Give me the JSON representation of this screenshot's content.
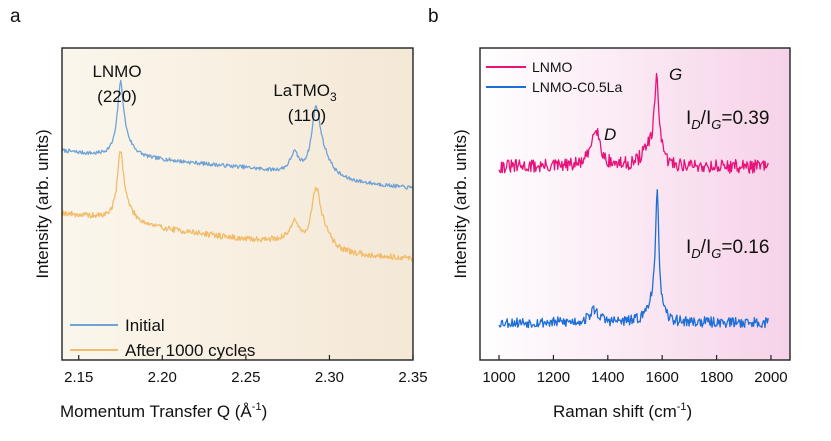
{
  "figure": {
    "panel_a_label": "a",
    "panel_b_label": "b"
  },
  "colors": {
    "initial": "#6fa3d8",
    "after": "#f2bc6a",
    "lnmo": "#e8137a",
    "lnmo_c": "#1d6fd6",
    "panel_a_bg_left": "#fbf6ec",
    "panel_a_bg_right": "#f4e8d6",
    "panel_b_bg_left": "#ffffff",
    "panel_b_bg_right": "#f6d2e8"
  },
  "chart_data": [
    {
      "type": "line",
      "title": "",
      "xlabel_prefix": "Momentum Transfer Q (Å",
      "xlabel_sup": "-1",
      "xlabel_suffix": ")",
      "ylabel": "Intensity (arb. units)",
      "xlim": [
        2.14,
        2.35
      ],
      "ylim": [
        0,
        1
      ],
      "xticks": [
        "2.15",
        "2.20",
        "2.25",
        "2.30",
        "2.35"
      ],
      "xtick_values": [
        2.15,
        2.2,
        2.25,
        2.3,
        2.35
      ],
      "legend_position": "bottom-left",
      "annotations": {
        "lnmo_name": "LNMO",
        "lnmo_hkl": "(220)",
        "la_name_main": "LaTMO",
        "la_name_sub": "3",
        "la_hkl": "(110)"
      },
      "series": [
        {
          "name": "Initial",
          "baseline_x": [
            2.14,
            2.16,
            2.17,
            2.2,
            2.25,
            2.27,
            2.3,
            2.35
          ],
          "baseline_y": [
            0.67,
            0.655,
            0.65,
            0.64,
            0.615,
            0.6,
            0.575,
            0.55
          ],
          "peaks": [
            {
              "center": 2.175,
              "height": 0.21,
              "width": 0.0022
            },
            {
              "center": 2.178,
              "height": 0.04,
              "width": 0.006
            },
            {
              "center": 2.279,
              "height": 0.06,
              "width": 0.003
            },
            {
              "center": 2.292,
              "height": 0.2,
              "width": 0.0032
            },
            {
              "center": 2.297,
              "height": 0.05,
              "width": 0.006
            }
          ],
          "noise": 0.006
        },
        {
          "name": "After 1000 cycles",
          "baseline_x": [
            2.14,
            2.16,
            2.17,
            2.2,
            2.25,
            2.27,
            2.3,
            2.35
          ],
          "baseline_y": [
            0.47,
            0.455,
            0.445,
            0.42,
            0.385,
            0.38,
            0.34,
            0.325
          ],
          "peaks": [
            {
              "center": 2.175,
              "height": 0.2,
              "width": 0.0022
            },
            {
              "center": 2.178,
              "height": 0.04,
              "width": 0.006
            },
            {
              "center": 2.279,
              "height": 0.07,
              "width": 0.003
            },
            {
              "center": 2.292,
              "height": 0.17,
              "width": 0.0032
            },
            {
              "center": 2.297,
              "height": 0.05,
              "width": 0.006
            }
          ],
          "noise": 0.009
        }
      ]
    },
    {
      "type": "line",
      "title": "",
      "xlabel_prefix": "Raman shift (cm",
      "xlabel_sup": "-1",
      "xlabel_suffix": ")",
      "ylabel": "Intensity (arb. units)",
      "xlim": [
        930,
        2070
      ],
      "ylim": [
        0,
        1
      ],
      "xticks": [
        "1000",
        "1200",
        "1400",
        "1600",
        "1800",
        "2000"
      ],
      "xtick_values": [
        1000,
        1200,
        1400,
        1600,
        1800,
        2000
      ],
      "x_range": [
        1000,
        1990
      ],
      "legend_position": "top-left",
      "annotations": {
        "D": "D",
        "G": "G",
        "ratio1_value": "=0.39",
        "ratio2_value": "=0.16",
        "ratio_I": "I",
        "ratio_D": "D",
        "ratio_sep": "/I",
        "ratio_G": "G"
      },
      "series": [
        {
          "name": "LNMO",
          "baseline": 0.62,
          "peaks": [
            {
              "center": 1355,
              "height": 0.13,
              "width": 18
            },
            {
              "center": 1580,
              "height": 0.28,
              "width": 10
            },
            {
              "center": 1545,
              "height": 0.05,
              "width": 25
            }
          ],
          "noise": 0.022
        },
        {
          "name": "LNMO-C0.5La",
          "baseline": 0.12,
          "peaks": [
            {
              "center": 1350,
              "height": 0.04,
              "width": 20
            },
            {
              "center": 1582,
              "height": 0.39,
              "width": 8
            },
            {
              "center": 1560,
              "height": 0.05,
              "width": 22
            }
          ],
          "noise": 0.017
        }
      ]
    }
  ]
}
